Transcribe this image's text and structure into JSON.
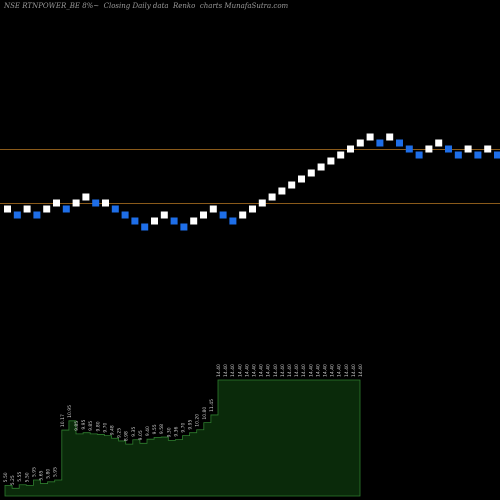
{
  "chart_data": {
    "type": "renko",
    "title": "NSE RTNPOWER_BE 8%~  Closing Daily data  Renko  charts MunafaSutra.com",
    "colors": {
      "up": "#ffffff",
      "down": "#1e6ee8",
      "line": "#8a5a1a",
      "area_fill": "#0a2a0a",
      "area_line": "#2e7d2e",
      "label": "#cfcfcf"
    },
    "reference_lines": [
      "upper",
      "lower"
    ],
    "bricks": [
      {
        "i": 0,
        "level": 0,
        "dir": "up"
      },
      {
        "i": 1,
        "level": -1,
        "dir": "down"
      },
      {
        "i": 2,
        "level": 0,
        "dir": "up"
      },
      {
        "i": 3,
        "level": -1,
        "dir": "down"
      },
      {
        "i": 4,
        "level": 0,
        "dir": "up"
      },
      {
        "i": 5,
        "level": 1,
        "dir": "up"
      },
      {
        "i": 6,
        "level": 0,
        "dir": "down"
      },
      {
        "i": 7,
        "level": 1,
        "dir": "up"
      },
      {
        "i": 8,
        "level": 2,
        "dir": "up"
      },
      {
        "i": 9,
        "level": 1,
        "dir": "down"
      },
      {
        "i": 10,
        "level": 1,
        "dir": "up"
      },
      {
        "i": 11,
        "level": 0,
        "dir": "down"
      },
      {
        "i": 12,
        "level": -1,
        "dir": "down"
      },
      {
        "i": 13,
        "level": -2,
        "dir": "down"
      },
      {
        "i": 14,
        "level": -3,
        "dir": "down"
      },
      {
        "i": 15,
        "level": -2,
        "dir": "up"
      },
      {
        "i": 16,
        "level": -1,
        "dir": "up"
      },
      {
        "i": 17,
        "level": -2,
        "dir": "down"
      },
      {
        "i": 18,
        "level": -3,
        "dir": "down"
      },
      {
        "i": 19,
        "level": -2,
        "dir": "up"
      },
      {
        "i": 20,
        "level": -1,
        "dir": "up"
      },
      {
        "i": 21,
        "level": 0,
        "dir": "up"
      },
      {
        "i": 22,
        "level": -1,
        "dir": "down"
      },
      {
        "i": 23,
        "level": -2,
        "dir": "down"
      },
      {
        "i": 24,
        "level": -1,
        "dir": "up"
      },
      {
        "i": 25,
        "level": 0,
        "dir": "up"
      },
      {
        "i": 26,
        "level": 1,
        "dir": "up"
      },
      {
        "i": 27,
        "level": 2,
        "dir": "up"
      },
      {
        "i": 28,
        "level": 3,
        "dir": "up"
      },
      {
        "i": 29,
        "level": 4,
        "dir": "up"
      },
      {
        "i": 30,
        "level": 5,
        "dir": "up"
      },
      {
        "i": 31,
        "level": 6,
        "dir": "up"
      },
      {
        "i": 32,
        "level": 7,
        "dir": "up"
      },
      {
        "i": 33,
        "level": 8,
        "dir": "up"
      },
      {
        "i": 34,
        "level": 9,
        "dir": "up"
      },
      {
        "i": 35,
        "level": 10,
        "dir": "up"
      },
      {
        "i": 36,
        "level": 11,
        "dir": "up"
      },
      {
        "i": 37,
        "level": 12,
        "dir": "up"
      },
      {
        "i": 38,
        "level": 11,
        "dir": "down"
      },
      {
        "i": 39,
        "level": 12,
        "dir": "up"
      },
      {
        "i": 40,
        "level": 11,
        "dir": "down"
      },
      {
        "i": 41,
        "level": 10,
        "dir": "down"
      },
      {
        "i": 42,
        "level": 9,
        "dir": "down"
      },
      {
        "i": 43,
        "level": 10,
        "dir": "up"
      },
      {
        "i": 44,
        "level": 11,
        "dir": "up"
      },
      {
        "i": 45,
        "level": 10,
        "dir": "down"
      },
      {
        "i": 46,
        "level": 9,
        "dir": "down"
      },
      {
        "i": 47,
        "level": 10,
        "dir": "up"
      },
      {
        "i": 48,
        "level": 9,
        "dir": "down"
      },
      {
        "i": 49,
        "level": 10,
        "dir": "up"
      },
      {
        "i": 50,
        "level": 9,
        "dir": "down"
      }
    ],
    "price_labels": [
      "5.50",
      "5.25",
      "5.55",
      "5.50",
      "5.95",
      "5.65",
      "5.80",
      "5.95",
      "10.17",
      "10.95",
      "9.85",
      "9.95",
      "9.85",
      "9.80",
      "9.70",
      "9.48",
      "9.25",
      "8.98",
      "9.35",
      "9.05",
      "9.40",
      "9.55",
      "9.58",
      "9.30",
      "9.36",
      "9.70",
      "9.95",
      "10.20",
      "10.80",
      "11.45",
      "14.40",
      "14.40",
      "14.40",
      "14.40",
      "14.40",
      "14.40",
      "14.40",
      "14.40",
      "14.40",
      "14.40",
      "14.40",
      "14.40",
      "14.40",
      "14.40",
      "14.40",
      "14.40",
      "14.40",
      "14.40",
      "14.40",
      "14.40",
      "14.40"
    ],
    "area_values": [
      5.5,
      5.25,
      5.55,
      5.5,
      5.95,
      5.65,
      5.8,
      5.95,
      10.17,
      10.95,
      9.85,
      9.95,
      9.85,
      9.8,
      9.7,
      9.48,
      9.25,
      8.98,
      9.35,
      9.05,
      9.4,
      9.55,
      9.58,
      9.3,
      9.36,
      9.7,
      9.95,
      10.2,
      10.8,
      11.45,
      14.4,
      14.4,
      14.4,
      14.4,
      14.4,
      14.4,
      14.4,
      14.4,
      14.4,
      14.4,
      14.4,
      14.4,
      14.4,
      14.4,
      14.4,
      14.4,
      14.4,
      14.4,
      14.4,
      14.4,
      14.4
    ]
  }
}
